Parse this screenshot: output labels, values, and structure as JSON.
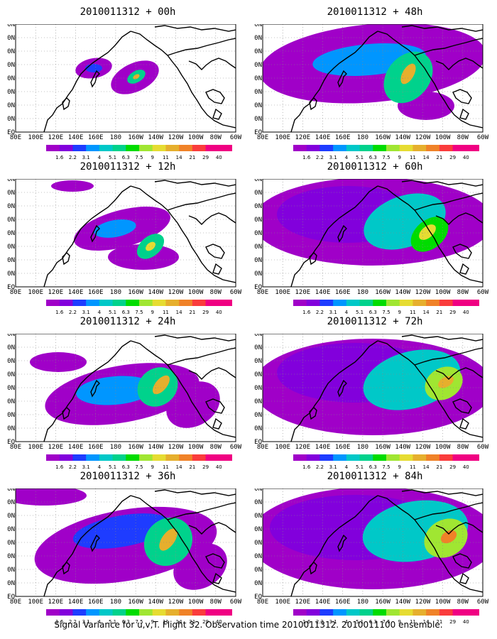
{
  "panels": [
    {
      "title": "2010011312 + 00h",
      "lead_hours": 0,
      "activity": 0.15
    },
    {
      "title": "2010011312 + 12h",
      "lead_hours": 12,
      "activity": 0.3
    },
    {
      "title": "2010011312 + 24h",
      "lead_hours": 24,
      "activity": 0.5
    },
    {
      "title": "2010011312 + 36h",
      "lead_hours": 36,
      "activity": 0.62
    },
    {
      "title": "2010011312 + 48h",
      "lead_hours": 48,
      "activity": 0.68
    },
    {
      "title": "2010011312 + 60h",
      "lead_hours": 60,
      "activity": 0.8
    },
    {
      "title": "2010011312 + 72h",
      "lead_hours": 72,
      "activity": 0.9
    },
    {
      "title": "2010011312 + 84h",
      "lead_hours": 84,
      "activity": 1.0
    }
  ],
  "lon_labels": [
    "80E",
    "100E",
    "120E",
    "140E",
    "160E",
    "180",
    "160W",
    "140W",
    "120W",
    "100W",
    "80W",
    "60W"
  ],
  "lat_labels": [
    "EQ",
    "10N",
    "20N",
    "30N",
    "40N",
    "50N",
    "60N",
    "70N",
    "80N"
  ],
  "colorbar": {
    "labels": [
      "1.6",
      "2.2",
      "3.1",
      "4",
      "5.1",
      "6.3",
      "7.5",
      "9",
      "11",
      "14",
      "21",
      "29",
      "40"
    ],
    "colors": [
      "#a000c8",
      "#8200dc",
      "#1e3cff",
      "#0096ff",
      "#00c8c8",
      "#00d28c",
      "#00dc00",
      "#a0e632",
      "#e6dc32",
      "#e6af2d",
      "#f08228",
      "#fa3c3c",
      "#f00082"
    ]
  },
  "caption": "Signal Variance for u,v,T. Flight 32. Observation time 2010011312. 2010011100 ensemble."
}
